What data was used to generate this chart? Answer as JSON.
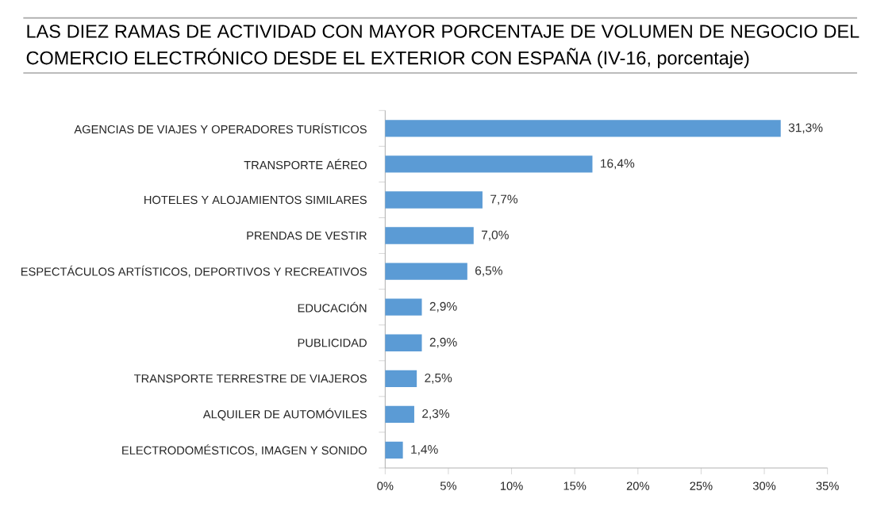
{
  "chart_data": {
    "type": "bar",
    "orientation": "horizontal",
    "title": "LAS DIEZ RAMAS DE ACTIVIDAD CON MAYOR PORCENTAJE DE VOLUMEN DE NEGOCIO DEL COMERCIO ELECTRÓNICO DESDE EL EXTERIOR CON ESPAÑA (IV-16, porcentaje)",
    "categories": [
      "AGENCIAS DE VIAJES Y OPERADORES TURÍSTICOS",
      "TRANSPORTE AÉREO",
      "HOTELES  Y ALOJAMIENTOS SIMILARES",
      "PRENDAS DE VESTIR",
      "ESPECTÁCULOS ARTÍSTICOS, DEPORTIVOS Y RECREATIVOS",
      "EDUCACIÓN",
      "PUBLICIDAD",
      "TRANSPORTE TERRESTRE DE VIAJEROS",
      "ALQUILER DE AUTOMÓVILES",
      "ELECTRODOMÉSTICOS,  IMAGEN Y SONIDO"
    ],
    "values": [
      31.3,
      16.4,
      7.7,
      7.0,
      6.5,
      2.9,
      2.9,
      2.5,
      2.3,
      1.4
    ],
    "value_labels": [
      "31,3%",
      "16,4%",
      "7,7%",
      "7,0%",
      "6,5%",
      "2,9%",
      "2,9%",
      "2,5%",
      "2,3%",
      "1,4%"
    ],
    "color": "#5b9bd5",
    "xlim": [
      0,
      35
    ],
    "xticks": [
      {
        "value": 0,
        "label": "0%"
      },
      {
        "value": 5,
        "label": "5%"
      },
      {
        "value": 10,
        "label": "10%"
      },
      {
        "value": 15,
        "label": "15%"
      },
      {
        "value": 20,
        "label": "20%"
      },
      {
        "value": 25,
        "label": "25%"
      },
      {
        "value": 30,
        "label": "30%"
      },
      {
        "value": 35,
        "label": "35%"
      }
    ],
    "grid": false
  }
}
